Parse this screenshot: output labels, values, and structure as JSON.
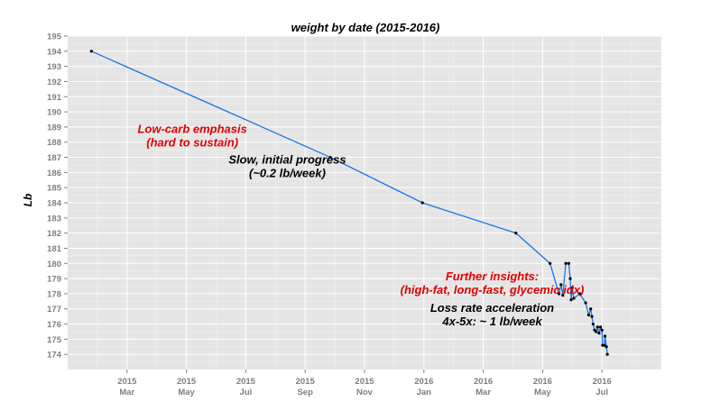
{
  "chart_data": {
    "type": "line",
    "title": "weight by date (2015-2016)",
    "xlabel": "",
    "ylabel": "Lb",
    "ylim": [
      173,
      195
    ],
    "xlim": [
      0,
      20
    ],
    "x_unit": "months since 2015-01-01",
    "grid": true,
    "y_ticks": [
      174,
      175,
      176,
      177,
      178,
      179,
      180,
      181,
      182,
      183,
      184,
      185,
      186,
      187,
      188,
      189,
      190,
      191,
      192,
      193,
      194,
      195
    ],
    "x_ticks": [
      {
        "x": 2,
        "year": "2015",
        "month": "Mar"
      },
      {
        "x": 4,
        "year": "2015",
        "month": "May"
      },
      {
        "x": 6,
        "year": "2015",
        "month": "Jul"
      },
      {
        "x": 8,
        "year": "2015",
        "month": "Sep"
      },
      {
        "x": 10,
        "year": "2015",
        "month": "Nov"
      },
      {
        "x": 12,
        "year": "2016",
        "month": "Jan"
      },
      {
        "x": 14,
        "year": "2016",
        "month": "Mar"
      },
      {
        "x": 16,
        "year": "2016",
        "month": "May"
      },
      {
        "x": 18,
        "year": "2016",
        "month": "Jul"
      }
    ],
    "series": [
      {
        "name": "weight",
        "color": "#1a75e8",
        "points": [
          {
            "x": 0.8,
            "y": 194
          },
          {
            "x": 8.85,
            "y": 187
          },
          {
            "x": 11.95,
            "y": 184
          },
          {
            "x": 15.1,
            "y": 182
          },
          {
            "x": 16.25,
            "y": 180
          },
          {
            "x": 16.55,
            "y": 178
          },
          {
            "x": 16.62,
            "y": 178.6
          },
          {
            "x": 16.68,
            "y": 177.9
          },
          {
            "x": 16.78,
            "y": 180
          },
          {
            "x": 16.88,
            "y": 180
          },
          {
            "x": 16.93,
            "y": 179
          },
          {
            "x": 16.96,
            "y": 177.6
          },
          {
            "x": 17.0,
            "y": 178.4
          },
          {
            "x": 17.05,
            "y": 177.7
          },
          {
            "x": 17.25,
            "y": 178
          },
          {
            "x": 17.45,
            "y": 177.4
          },
          {
            "x": 17.55,
            "y": 176.6
          },
          {
            "x": 17.62,
            "y": 177
          },
          {
            "x": 17.66,
            "y": 176.5
          },
          {
            "x": 17.7,
            "y": 176
          },
          {
            "x": 17.75,
            "y": 175.6
          },
          {
            "x": 17.8,
            "y": 175.5
          },
          {
            "x": 17.85,
            "y": 175.8
          },
          {
            "x": 17.9,
            "y": 175.4
          },
          {
            "x": 17.95,
            "y": 175.8
          },
          {
            "x": 18.0,
            "y": 175.6
          },
          {
            "x": 18.02,
            "y": 174.6
          },
          {
            "x": 18.08,
            "y": 174.6
          },
          {
            "x": 18.1,
            "y": 175.2
          },
          {
            "x": 18.15,
            "y": 174.5
          },
          {
            "x": 18.18,
            "y": 174
          }
        ]
      }
    ],
    "annotations": [
      {
        "lines": [
          "Low-carb emphasis",
          "(hard to sustain)"
        ],
        "color": "#e00000",
        "x": 4.2,
        "y": 188.6
      },
      {
        "lines": [
          "Slow, initial progress",
          "(~0.2 lb/week)"
        ],
        "color": "#000000",
        "x": 7.4,
        "y": 186.6
      },
      {
        "lines": [
          "Further insights:",
          "(high-fat, long-fast, glycemic idx)"
        ],
        "color": "#e00000",
        "x": 14.3,
        "y": 178.9
      },
      {
        "lines": [
          "Loss rate acceleration",
          "4x-5x: ~ 1 lb/week"
        ],
        "color": "#000000",
        "x": 14.3,
        "y": 176.8
      }
    ]
  }
}
